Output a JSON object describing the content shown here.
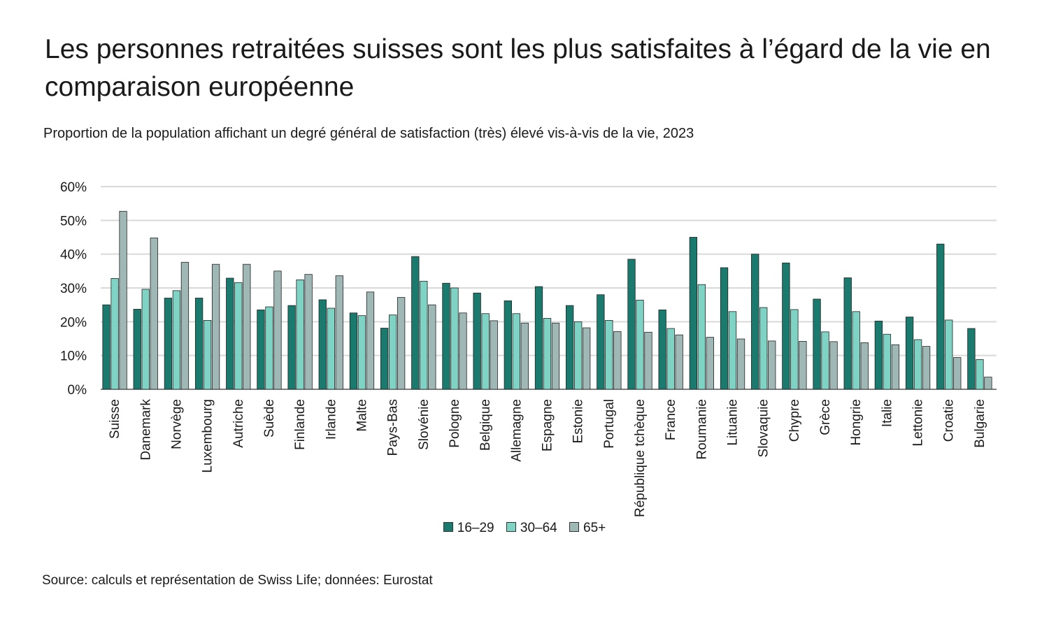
{
  "title": "Les personnes retraitées suisses sont les plus satisfaites à l’égard de la vie en comparaison européenne",
  "subtitle": "Proportion de la population affichant un degré général de satisfaction (très) élevé vis-à-vis de la vie, 2023",
  "source": "Source: calculs et représentation de Swiss Life; données: Eurostat",
  "colors": {
    "s1": "#1a7a6e",
    "s2": "#7fd3c4",
    "s3": "#9fb8b6",
    "grid": "#d9d9d9",
    "axis": "#333333"
  },
  "chart_data": {
    "type": "bar",
    "title": "Les personnes retraitées suisses sont les plus satisfaites à l’égard de la vie en comparaison européenne",
    "subtitle": "Proportion de la population affichant un degré général de satisfaction (très) élevé vis-à-vis de la vie, 2023",
    "ylim": [
      0,
      60
    ],
    "yticks": [
      0,
      10,
      20,
      30,
      40,
      50,
      60
    ],
    "ytick_labels": [
      "0%",
      "10%",
      "20%",
      "30%",
      "40%",
      "50%",
      "60%"
    ],
    "grid": true,
    "legend_position": "bottom",
    "categories": [
      "Suisse",
      "Danemark",
      "Norvège",
      "Luxembourg",
      "Autriche",
      "Suède",
      "Finlande",
      "Irlande",
      "Malte",
      "Pays-Bas",
      "Slovénie",
      "Pologne",
      "Belgique",
      "Allemagne",
      "Espagne",
      "Estonie",
      "Portugal",
      "République tchèque",
      "France",
      "Roumanie",
      "Lituanie",
      "Slovaquie",
      "Chypre",
      "Grèce",
      "Hongrie",
      "Italie",
      "Lettonie",
      "Croatie",
      "Bulgarie"
    ],
    "series": [
      {
        "name": "16–29",
        "values": [
          25.0,
          23.7,
          27.0,
          27.0,
          32.9,
          23.5,
          24.8,
          26.5,
          22.6,
          18.1,
          39.3,
          31.4,
          28.5,
          26.2,
          30.4,
          24.8,
          28.0,
          38.5,
          23.5,
          45.0,
          36.0,
          40.0,
          37.4,
          26.7,
          33.0,
          20.2,
          21.4,
          43.0,
          18.0
        ]
      },
      {
        "name": "30–64",
        "values": [
          32.8,
          29.6,
          29.2,
          20.4,
          31.6,
          24.4,
          32.4,
          24.0,
          21.8,
          22.0,
          32.0,
          30.0,
          22.4,
          22.4,
          21.0,
          20.0,
          20.4,
          26.4,
          18.0,
          31.0,
          23.0,
          24.2,
          23.6,
          17.0,
          23.0,
          16.3,
          14.7,
          20.5,
          8.8
        ]
      },
      {
        "name": "65+",
        "values": [
          52.7,
          44.8,
          37.6,
          37.0,
          37.0,
          35.0,
          34.0,
          33.6,
          28.8,
          27.2,
          25.0,
          22.6,
          20.3,
          19.6,
          19.6,
          18.2,
          17.1,
          16.9,
          16.1,
          15.4,
          14.9,
          14.3,
          14.2,
          14.1,
          13.8,
          13.2,
          12.7,
          9.4,
          3.6
        ]
      }
    ]
  }
}
